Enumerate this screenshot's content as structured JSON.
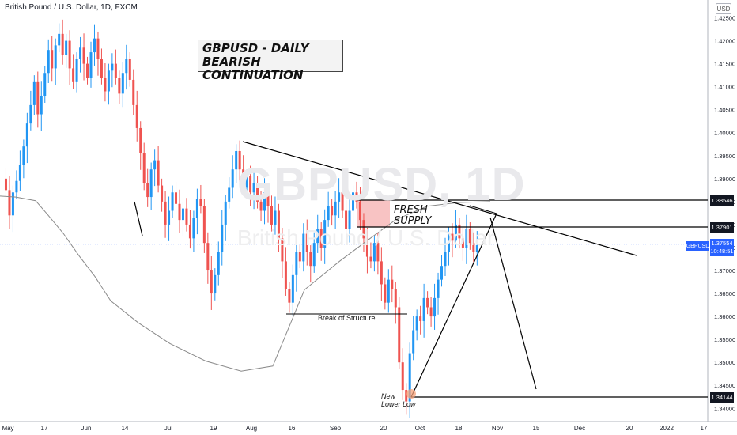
{
  "header": {
    "symbol_title": "British Pound / U.S. Dollar, 1D, FXCM",
    "currency": "USD"
  },
  "annotations": {
    "title_line1": "GBPUSD - DAILY",
    "title_line2": "BEARISH CONTINUATION",
    "supply_line1": "FRESH",
    "supply_line2": "SUPPLY",
    "bos": "Break of Structure",
    "lower_low_line1": "New",
    "lower_low_line2": "Lower Low"
  },
  "watermark": {
    "ticker": "GBPUSD, 1D",
    "name": "British Pound / U.S. Dollar"
  },
  "price_tags": {
    "resistance": "1.38546",
    "supply": "1.37901",
    "low": "1.34144",
    "current_name": "GBPUSD",
    "current_price": "1.37554",
    "current_countdown": "10:48:51"
  },
  "colors": {
    "bull": "#2196f3",
    "bear": "#ef5350",
    "ma": "#8a8a8a",
    "supply_zone": "#f7b9b9"
  },
  "chart_data": {
    "type": "candlestick",
    "y_range": [
      1.3385,
      1.4275
    ],
    "x_ticks": [
      "May",
      "17",
      "Jun",
      "14",
      "Jul",
      "19",
      "Aug",
      "16",
      "Sep",
      "20",
      "Oct",
      "18",
      "Nov",
      "15",
      "Dec",
      "20",
      "2022",
      "17"
    ],
    "y_ticks": [
      "1.42500",
      "1.42000",
      "1.41500",
      "1.41000",
      "1.40500",
      "1.40000",
      "1.39500",
      "1.39000",
      "1.38500",
      "1.38000",
      "1.37500",
      "1.37000",
      "1.36500",
      "1.36000",
      "1.35500",
      "1.35000",
      "1.34500",
      "1.34000"
    ],
    "levels": [
      {
        "name": "resistance",
        "price": 1.38546
      },
      {
        "name": "supply",
        "price": 1.37901
      },
      {
        "name": "new-lower-low",
        "price": 1.34144
      },
      {
        "name": "break-of-structure",
        "price": 1.3598
      }
    ],
    "closes": [
      1.39,
      1.3875,
      1.382,
      1.387,
      1.3895,
      1.393,
      1.397,
      1.402,
      1.406,
      1.411,
      1.404,
      1.408,
      1.413,
      1.418,
      1.414,
      1.419,
      1.4215,
      1.417,
      1.42,
      1.414,
      1.411,
      1.416,
      1.4185,
      1.415,
      1.412,
      1.4175,
      1.4205,
      1.416,
      1.412,
      1.409,
      1.4135,
      1.415,
      1.412,
      1.4085,
      1.413,
      1.416,
      1.4115,
      1.406,
      1.401,
      1.3955,
      1.389,
      1.386,
      1.392,
      1.394,
      1.3885,
      1.385,
      1.38,
      1.383,
      1.387,
      1.3845,
      1.381,
      1.3835,
      1.38,
      1.377,
      1.3815,
      1.3855,
      1.384,
      1.376,
      1.37,
      1.365,
      1.369,
      1.374,
      1.38,
      1.385,
      1.388,
      1.392,
      1.396,
      1.392,
      1.388,
      1.3905,
      1.387,
      1.389,
      1.385,
      1.383,
      1.387,
      1.384,
      1.38,
      1.383,
      1.377,
      1.372,
      1.366,
      1.363,
      1.369,
      1.374,
      1.372,
      1.378,
      1.374,
      1.371,
      1.376,
      1.379,
      1.375,
      1.381,
      1.384,
      1.382,
      1.385,
      1.387,
      1.383,
      1.379,
      1.383,
      1.387,
      1.385,
      1.381,
      1.377,
      1.373,
      1.372,
      1.376,
      1.372,
      1.367,
      1.363,
      1.368,
      1.366,
      1.362,
      1.35,
      1.344,
      1.3415,
      1.352,
      1.357,
      1.36,
      1.359,
      1.364,
      1.362,
      1.36,
      1.364,
      1.368,
      1.371,
      1.374,
      1.378,
      1.3765,
      1.38,
      1.377,
      1.375,
      1.379,
      1.376,
      1.374,
      1.3755
    ],
    "moving_average": {
      "type": "line",
      "points": [
        [
          0,
          1.3862
        ],
        [
          20,
          1.386
        ],
        [
          45,
          1.3852
        ],
        [
          60,
          1.3822
        ],
        [
          80,
          1.3781
        ],
        [
          100,
          1.3732
        ],
        [
          120,
          1.3687
        ],
        [
          140,
          1.3634
        ],
        [
          175,
          1.3586
        ],
        [
          215,
          1.3541
        ],
        [
          260,
          1.3503
        ],
        [
          305,
          1.3481
        ],
        [
          345,
          1.3492
        ],
        [
          385,
          1.3658
        ],
        [
          430,
          1.3721
        ],
        [
          465,
          1.3766
        ],
        [
          500,
          1.381
        ],
        [
          540,
          1.384
        ],
        [
          580,
          1.3848
        ],
        [
          620,
          1.385
        ]
      ]
    }
  }
}
